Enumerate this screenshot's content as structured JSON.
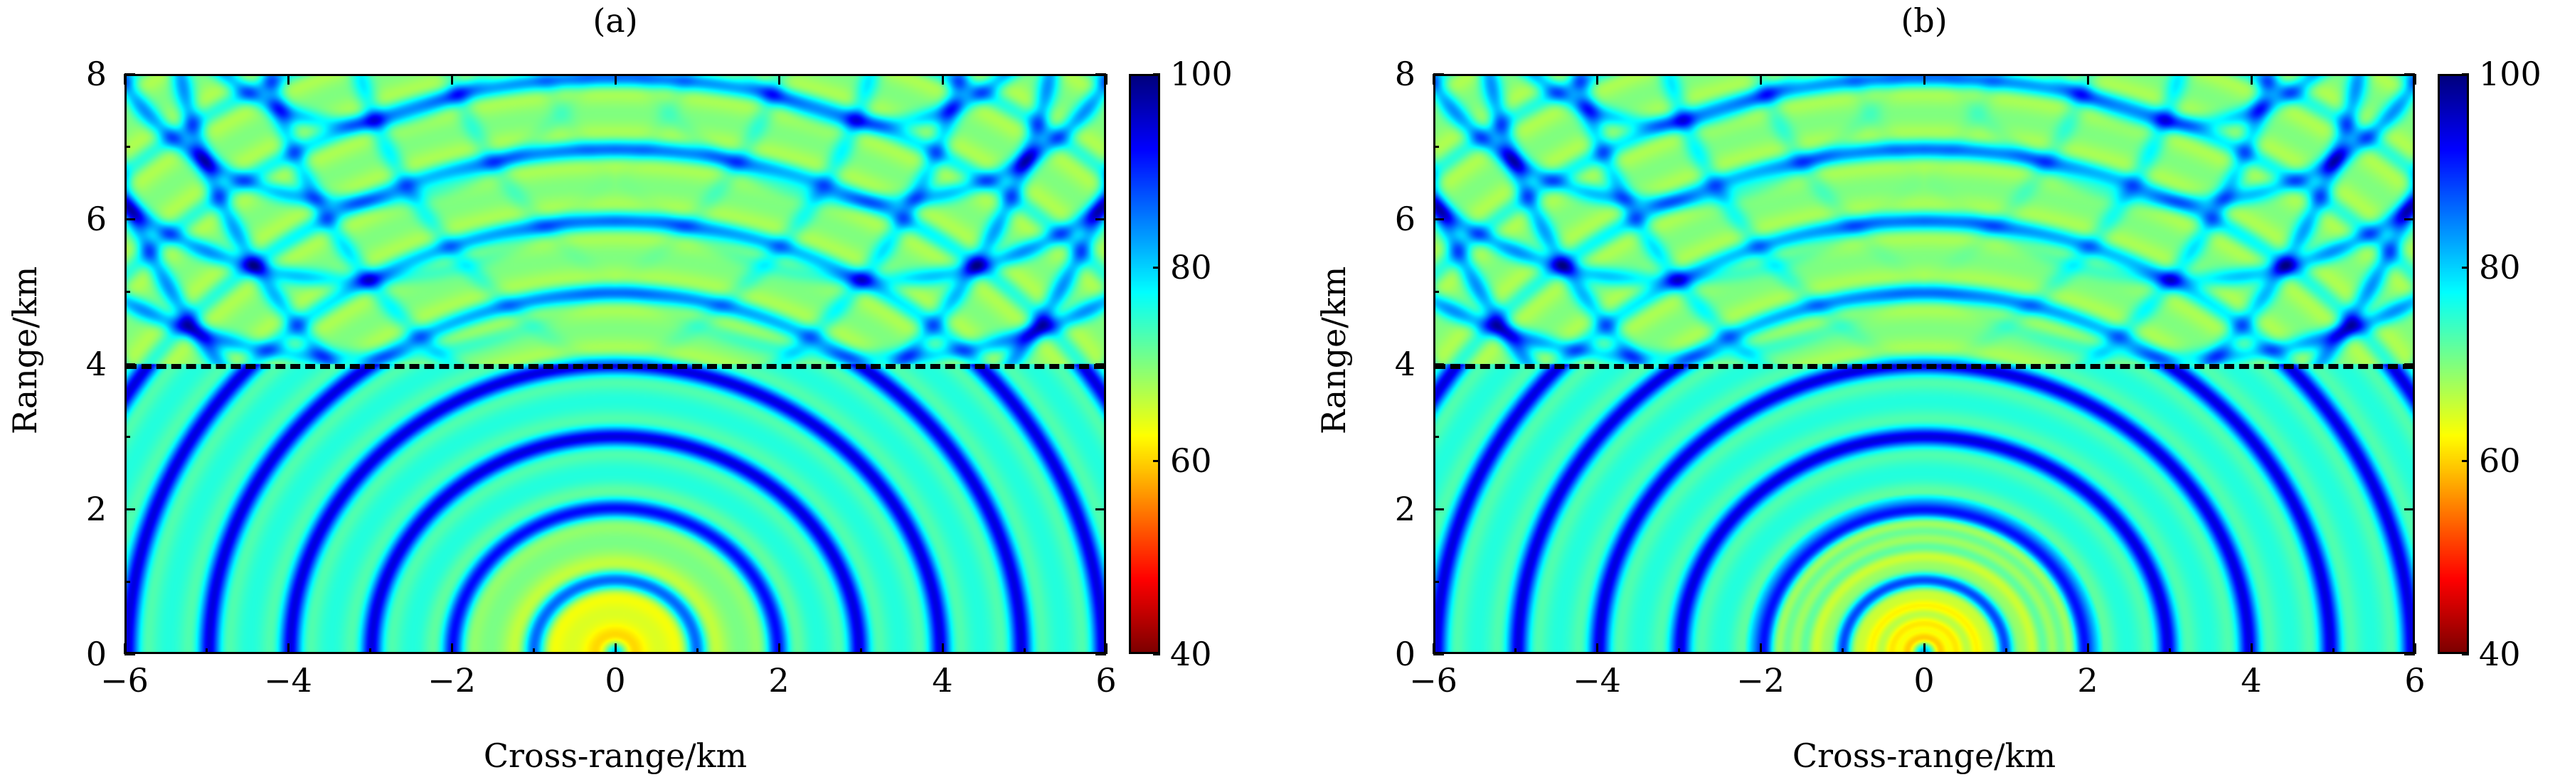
{
  "colors": {
    "colormap": [
      "#00008f",
      "#0000ff",
      "#00ffff",
      "#ffff00",
      "#ff0000",
      "#800000"
    ],
    "dashed_line": "#000000"
  },
  "chart_data": [
    {
      "type": "heatmap",
      "title": "(a)",
      "xlabel": "Cross-range/km",
      "ylabel": "Range/km",
      "xlim": [
        -6,
        6
      ],
      "ylim": [
        0,
        8
      ],
      "xticks": [
        "−6",
        "−4",
        "−2",
        "0",
        "2",
        "4",
        "6"
      ],
      "yticks": [
        "0",
        "2",
        "4",
        "6",
        "8"
      ],
      "colorbar": {
        "range": [
          40,
          100
        ],
        "ticks": [
          "40",
          "60",
          "80",
          "100"
        ],
        "colormap": "jet",
        "reversed": true
      },
      "reference_line": {
        "y": 4,
        "style": "dashed"
      },
      "pattern": "concentric interference rings centered at (0,0) below 4 km; crossed interference fringes above 4 km"
    },
    {
      "type": "heatmap",
      "title": "(b)",
      "xlabel": "Cross-range/km",
      "ylabel": "Range/km",
      "xlim": [
        -6,
        6
      ],
      "ylim": [
        0,
        8
      ],
      "xticks": [
        "−6",
        "−4",
        "−2",
        "0",
        "2",
        "4",
        "6"
      ],
      "yticks": [
        "0",
        "2",
        "4",
        "6",
        "8"
      ],
      "colorbar": {
        "range": [
          40,
          100
        ],
        "ticks": [
          "40",
          "60",
          "80",
          "100"
        ],
        "colormap": "jet",
        "reversed": true
      },
      "reference_line": {
        "y": 4,
        "style": "dashed"
      },
      "pattern": "concentric interference rings centered at (0,0) below 4 km; crossed interference fringes above 4 km"
    }
  ]
}
